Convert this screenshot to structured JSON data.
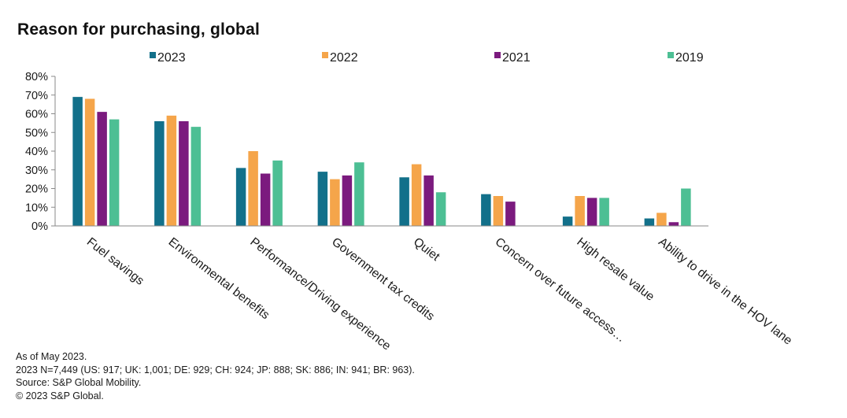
{
  "chart_data": {
    "type": "bar",
    "title": "Reason for purchasing, global",
    "categories": [
      "Fuel savings",
      "Environmental benefits",
      "Performance/Driving experience",
      "Government tax credits",
      "Quiet",
      "Concern over future access…",
      "High resale value",
      "Ability to drive in the HOV  lane"
    ],
    "series": [
      {
        "name": "2023",
        "color": "#12708a",
        "values": [
          69,
          56,
          31,
          29,
          26,
          17,
          5,
          4
        ]
      },
      {
        "name": "2022",
        "color": "#f5a54a",
        "values": [
          68,
          59,
          40,
          25,
          33,
          16,
          16,
          7
        ]
      },
      {
        "name": "2021",
        "color": "#7b1a7e",
        "values": [
          61,
          56,
          28,
          27,
          27,
          13,
          15,
          2
        ]
      },
      {
        "name": "2019",
        "color": "#4dbf94",
        "values": [
          57,
          53,
          35,
          34,
          18,
          0,
          15,
          20
        ]
      }
    ],
    "y_ticks": [
      "0%",
      "10%",
      "20%",
      "30%",
      "40%",
      "50%",
      "60%",
      "70%",
      "80%"
    ],
    "ylim": [
      0,
      80
    ],
    "grid": false,
    "legend_position": "top"
  },
  "footnotes": [
    "As of May 2023.",
    "2023 N=7,449 (US: 917; UK: 1,001; DE: 929; CH: 924; JP: 888; SK: 886; IN: 941; BR: 963).",
    "Source: S&P Global Mobility.",
    "© 2023 S&P Global."
  ]
}
